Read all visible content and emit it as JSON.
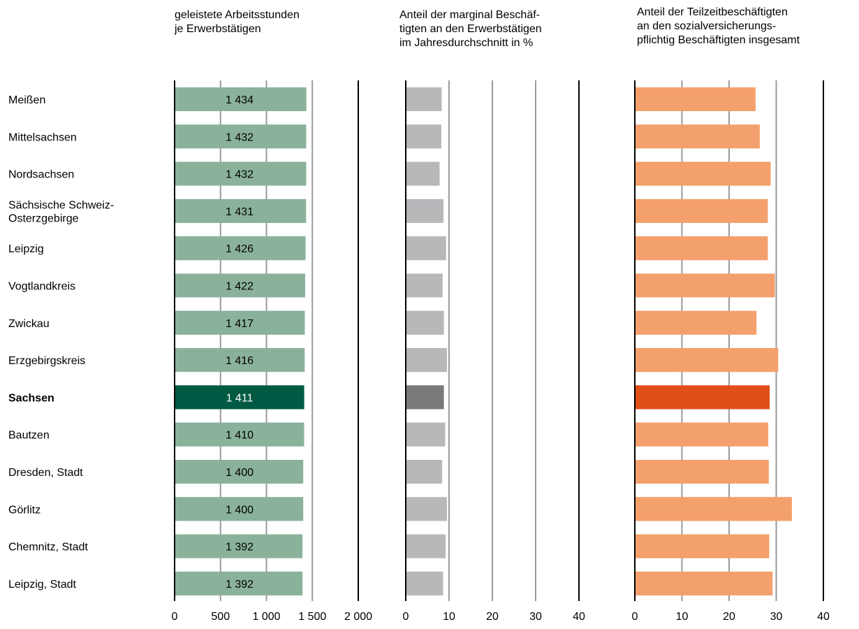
{
  "panels": [
    {
      "title_lines": [
        "geleistete Arbeitsstunden",
        "je Erwerbstätigen"
      ]
    },
    {
      "title_lines": [
        "Anteil der marginal Beschäf-",
        "tigten an den Erwerbstätigen",
        "im Jahresdurchschnitt in %"
      ]
    },
    {
      "title_lines": [
        "Anteil der Teilzeitbeschäftigten",
        "an den sozialversicherungs-",
        "pflichtig Beschäftigten insgesamt"
      ]
    }
  ],
  "colors": {
    "hours_bar": "#8ab29b",
    "hours_highlight": "#005a43",
    "marginal_bar": "#b7b8ba",
    "marginal_highlight": "#7a7a7a",
    "parttime_bar": "#f4a06c",
    "parttime_highlight": "#e04e1a",
    "gridline": "#9a9a9a",
    "axis": "#000000"
  },
  "chart_data": [
    {
      "type": "bar",
      "orientation": "horizontal",
      "categories": [
        "Meißen",
        "Mittelsachsen",
        "Nordsachsen",
        "Sächsische Schweiz-Osterzgebirge",
        "Leipzig",
        "Vogtlandkreis",
        "Zwickau",
        "Erzgebirgskreis",
        "Sachsen",
        "Bautzen",
        "Dresden, Stadt",
        "Görlitz",
        "Chemnitz, Stadt",
        "Leipzig, Stadt"
      ],
      "values": [
        1434,
        1432,
        1432,
        1431,
        1426,
        1422,
        1417,
        1416,
        1411,
        1410,
        1400,
        1400,
        1392,
        1392
      ],
      "value_labels": [
        "1 434",
        "1 432",
        "1 432",
        "1 431",
        "1 426",
        "1 422",
        "1 417",
        "1 416",
        "1 411",
        "1 410",
        "1 400",
        "1 400",
        "1 392",
        "1 392"
      ],
      "highlight_category": "Sachsen",
      "xlim": [
        0,
        2000
      ],
      "xticks": [
        0,
        500,
        1000,
        1500,
        2000
      ],
      "xtick_labels": [
        "0",
        "500",
        "1 000",
        "1 500",
        "2 000"
      ],
      "title": "geleistete Arbeitsstunden je Erwerbstätigen"
    },
    {
      "type": "bar",
      "orientation": "horizontal",
      "categories": [
        "Meißen",
        "Mittelsachsen",
        "Nordsachsen",
        "Sächsische Schweiz-Osterzgebirge",
        "Leipzig",
        "Vogtlandkreis",
        "Zwickau",
        "Erzgebirgskreis",
        "Sachsen",
        "Bautzen",
        "Dresden, Stadt",
        "Görlitz",
        "Chemnitz, Stadt",
        "Leipzig, Stadt"
      ],
      "values": [
        8.3,
        8.2,
        7.8,
        8.7,
        9.3,
        8.5,
        8.8,
        9.5,
        8.8,
        9.1,
        8.4,
        9.5,
        9.2,
        8.6
      ],
      "highlight_category": "Sachsen",
      "xlim": [
        0,
        40
      ],
      "xticks": [
        0,
        10,
        20,
        30,
        40
      ],
      "xtick_labels": [
        "0",
        "10",
        "20",
        "30",
        "40"
      ],
      "title": "Anteil der marginal Beschäftigten an den Erwerbstätigen im Jahresdurchschnitt in %"
    },
    {
      "type": "bar",
      "orientation": "horizontal",
      "categories": [
        "Meißen",
        "Mittelsachsen",
        "Nordsachsen",
        "Sächsische Schweiz-Osterzgebirge",
        "Leipzig",
        "Vogtlandkreis",
        "Zwickau",
        "Erzgebirgskreis",
        "Sachsen",
        "Bautzen",
        "Dresden, Stadt",
        "Görlitz",
        "Chemnitz, Stadt",
        "Leipzig, Stadt"
      ],
      "values": [
        25.6,
        26.5,
        28.8,
        28.2,
        28.2,
        29.7,
        25.8,
        30.4,
        28.6,
        28.3,
        28.4,
        33.3,
        28.5,
        29.2
      ],
      "highlight_category": "Sachsen",
      "xlim": [
        0,
        40
      ],
      "xticks": [
        0,
        10,
        20,
        30,
        40
      ],
      "xtick_labels": [
        "0",
        "10",
        "20",
        "30",
        "40"
      ],
      "title": "Anteil der Teilzeitbeschäftigten an den sozialversicherungspflichtig Beschäftigten insgesamt"
    }
  ],
  "row_labels": [
    [
      "Meißen"
    ],
    [
      "Mittelsachsen"
    ],
    [
      "Nordsachsen"
    ],
    [
      "Sächsische Schweiz-",
      "Osterzgebirge"
    ],
    [
      "Leipzig"
    ],
    [
      "Vogtlandkreis"
    ],
    [
      "Zwickau"
    ],
    [
      "Erzgebirgskreis"
    ],
    [
      "Sachsen"
    ],
    [
      "Bautzen"
    ],
    [
      "Dresden, Stadt"
    ],
    [
      "Görlitz"
    ],
    [
      "Chemnitz, Stadt"
    ],
    [
      "Leipzig, Stadt"
    ]
  ]
}
